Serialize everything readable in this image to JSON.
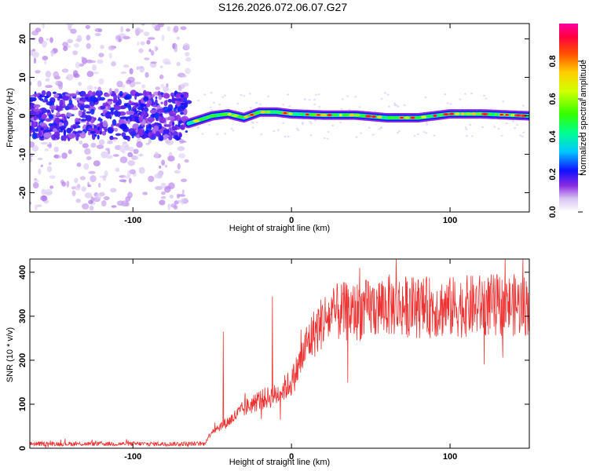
{
  "title": "S126.2026.072.06.07.G27",
  "chart_data": [
    {
      "id": "spectrogram",
      "type": "heatmap",
      "xlabel": "Height of straight line (km)",
      "ylabel": "Frequency (Hz)",
      "xlim": [
        -165,
        150
      ],
      "ylim": [
        -25,
        24
      ],
      "xticks": [
        -100,
        0,
        100
      ],
      "yticks": [
        20,
        10,
        0,
        -10,
        -20
      ],
      "tick_labels_x": [
        "-100",
        "0",
        "100"
      ],
      "tick_labels_y": [
        "20",
        "10",
        "0",
        "-10",
        "-20"
      ],
      "noise_region_x": [
        -165,
        -65
      ],
      "signal_track": {
        "x": [
          -65,
          -50,
          -40,
          -30,
          -20,
          -10,
          0,
          20,
          40,
          60,
          80,
          100,
          120,
          150
        ],
        "freq": [
          -2,
          0,
          0.5,
          -0.5,
          1,
          1,
          0.5,
          0.2,
          0.2,
          -0.5,
          -0.5,
          0.5,
          0.5,
          0
        ]
      },
      "colorbar": {
        "label": "Normalized spectral amplitude",
        "range": [
          0.0,
          1.0
        ],
        "ticks": [
          0.0,
          0.2,
          0.4,
          0.6,
          0.8
        ],
        "tick_labels": [
          "0.0",
          "0.2",
          "0.4",
          "0.6",
          "0.8"
        ]
      }
    },
    {
      "id": "snr",
      "type": "line",
      "xlabel": "Height of straight line (km)",
      "ylabel": "SNR (10 * v/v)",
      "xlim": [
        -165,
        150
      ],
      "ylim": [
        0,
        430
      ],
      "xticks": [
        -100,
        0,
        100
      ],
      "yticks": [
        0,
        100,
        200,
        300,
        400
      ],
      "tick_labels_x": [
        "-100",
        "0",
        "100"
      ],
      "tick_labels_y": [
        "0",
        "100",
        "200",
        "300",
        "400"
      ],
      "color": "#ee3333",
      "trend": {
        "x": [
          -165,
          -55,
          -50,
          -40,
          -30,
          -20,
          -10,
          0,
          5,
          10,
          20,
          30,
          40,
          60,
          80,
          100,
          120,
          150
        ],
        "y": [
          10,
          10,
          40,
          60,
          90,
          110,
          120,
          150,
          190,
          240,
          290,
          310,
          310,
          325,
          320,
          320,
          325,
          325
        ]
      },
      "spikes": [
        {
          "x": -43,
          "y": 265
        },
        {
          "x": -12,
          "y": 345
        },
        {
          "x": 6,
          "y": 270
        },
        {
          "x": 43,
          "y": 410
        },
        {
          "x": 66,
          "y": 430
        },
        {
          "x": 146,
          "y": 430
        }
      ]
    }
  ]
}
